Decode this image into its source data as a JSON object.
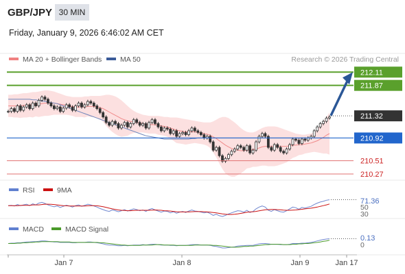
{
  "header": {
    "symbol": "GBP/JPY",
    "timeframe": "30 MIN",
    "datetime": "Friday, January 9, 2026 6:46:02 AM CET"
  },
  "chart_data": [
    {
      "type": "line",
      "panel": "price",
      "legend": [
        {
          "name": "MA 20 + Bollinger Bands",
          "color": "#f08080"
        },
        {
          "name": "MA 50",
          "color": "#3a5a98"
        }
      ],
      "attribution": "Research © 2026 Trading Central",
      "ylim": [
        210.22,
        212.2
      ],
      "levels": [
        {
          "value": 212.11,
          "label": "212.11",
          "kind": "resistance",
          "color": "#5aa02c"
        },
        {
          "value": 211.87,
          "label": "211.87",
          "kind": "resistance",
          "color": "#5aa02c"
        },
        {
          "value": 211.32,
          "label": "211.32",
          "kind": "last",
          "color": "#333333"
        },
        {
          "value": 210.92,
          "label": "210.92",
          "kind": "pivot",
          "color": "#2266cc"
        },
        {
          "value": 210.51,
          "label": "210.51",
          "kind": "support",
          "color": "#e07070"
        },
        {
          "value": 210.27,
          "label": "210.27",
          "kind": "support",
          "color": "#e07070"
        }
      ],
      "x_ticks": [
        "Jan 7",
        "Jan 8",
        "Jan 9",
        "Jan 17"
      ],
      "close": [
        211.4,
        211.45,
        211.4,
        211.5,
        211.42,
        211.48,
        211.52,
        211.45,
        211.55,
        211.5,
        211.6,
        211.66,
        211.62,
        211.55,
        211.5,
        211.45,
        211.48,
        211.4,
        211.46,
        211.52,
        211.48,
        211.42,
        211.5,
        211.55,
        211.48,
        211.52,
        211.58,
        211.55,
        211.5,
        211.45,
        211.38,
        211.3,
        211.2,
        211.15,
        211.22,
        211.18,
        211.1,
        211.15,
        211.2,
        211.12,
        211.18,
        211.25,
        211.2,
        211.15,
        211.18,
        211.1,
        211.2,
        211.25,
        211.18,
        211.12,
        211.05,
        211.1,
        211.08,
        211.0,
        211.05,
        210.95,
        211.0,
        211.02,
        210.98,
        211.05,
        211.1,
        211.05,
        211.02,
        210.98,
        210.92,
        210.95,
        210.85,
        210.7,
        210.75,
        210.6,
        210.5,
        210.55,
        210.62,
        210.68,
        210.72,
        210.78,
        210.75,
        210.7,
        210.78,
        210.65,
        210.7,
        210.85,
        210.95,
        211.0,
        210.95,
        210.75,
        210.7,
        210.8,
        210.75,
        210.68,
        210.65,
        210.72,
        210.8,
        210.9,
        210.88,
        210.82,
        210.9,
        210.88,
        210.92,
        210.95,
        211.05,
        211.12,
        211.18,
        211.22,
        211.28,
        211.3
      ],
      "ma20": [
        211.5,
        211.5,
        211.5,
        211.5,
        211.5,
        211.51,
        211.51,
        211.52,
        211.52,
        211.53,
        211.53,
        211.54,
        211.55,
        211.55,
        211.55,
        211.55,
        211.54,
        211.53,
        211.52,
        211.51,
        211.5,
        211.49,
        211.48,
        211.48,
        211.48,
        211.48,
        211.49,
        211.49,
        211.49,
        211.48,
        211.47,
        211.45,
        211.42,
        211.39,
        211.36,
        211.33,
        211.3,
        211.27,
        211.25,
        211.23,
        211.22,
        211.21,
        211.2,
        211.19,
        211.18,
        211.17,
        211.16,
        211.16,
        211.16,
        211.15,
        211.14,
        211.13,
        211.12,
        211.1,
        211.08,
        211.06,
        211.05,
        211.04,
        211.03,
        211.03,
        211.03,
        211.03,
        211.02,
        211.01,
        211.0,
        210.99,
        210.97,
        210.94,
        210.91,
        210.87,
        210.83,
        210.79,
        210.76,
        210.73,
        210.71,
        210.7,
        210.69,
        210.69,
        210.7,
        210.7,
        210.71,
        210.72,
        210.74,
        210.76,
        210.77,
        210.77,
        210.77,
        210.77,
        210.77,
        210.77,
        210.77,
        210.77,
        210.78,
        210.79,
        210.79,
        210.8,
        210.8,
        210.81,
        210.82,
        210.83,
        210.85,
        210.87,
        210.9,
        210.93,
        210.97,
        211.0
      ],
      "bb_upper": [
        211.7,
        211.7,
        211.71,
        211.71,
        211.72,
        211.73,
        211.73,
        211.74,
        211.75,
        211.75,
        211.76,
        211.77,
        211.78,
        211.78,
        211.77,
        211.76,
        211.74,
        211.72,
        211.7,
        211.68,
        211.67,
        211.66,
        211.66,
        211.66,
        211.66,
        211.67,
        211.67,
        211.68,
        211.68,
        211.68,
        211.68,
        211.69,
        211.7,
        211.7,
        211.69,
        211.67,
        211.64,
        211.6,
        211.55,
        211.5,
        211.45,
        211.41,
        211.38,
        211.36,
        211.34,
        211.33,
        211.32,
        211.32,
        211.32,
        211.32,
        211.31,
        211.3,
        211.3,
        211.29,
        211.29,
        211.29,
        211.28,
        211.27,
        211.26,
        211.25,
        211.24,
        211.23,
        211.22,
        211.21,
        211.2,
        211.2,
        211.2,
        211.22,
        211.25,
        211.28,
        211.3,
        211.3,
        211.28,
        211.24,
        211.2,
        211.15,
        211.1,
        211.06,
        211.03,
        211.02,
        211.02,
        211.04,
        211.07,
        211.1,
        211.12,
        211.13,
        211.13,
        211.13,
        211.12,
        211.1,
        211.08,
        211.06,
        211.04,
        211.02,
        211.0,
        210.99,
        210.98,
        210.98,
        210.99,
        211.0,
        211.03,
        211.08,
        211.15,
        211.22,
        211.3,
        211.38
      ],
      "bb_lower": [
        211.3,
        211.3,
        211.29,
        211.29,
        211.28,
        211.29,
        211.29,
        211.3,
        211.29,
        211.31,
        211.3,
        211.31,
        211.32,
        211.32,
        211.33,
        211.34,
        211.34,
        211.34,
        211.34,
        211.34,
        211.33,
        211.32,
        211.3,
        211.3,
        211.3,
        211.29,
        211.31,
        211.3,
        211.3,
        211.28,
        211.26,
        211.21,
        211.14,
        211.08,
        211.03,
        210.99,
        210.96,
        210.94,
        210.95,
        210.96,
        210.99,
        211.01,
        211.02,
        211.02,
        211.02,
        211.01,
        211.0,
        211.0,
        211.0,
        210.98,
        210.97,
        210.96,
        210.94,
        210.91,
        210.87,
        210.83,
        210.82,
        210.81,
        210.8,
        210.81,
        210.82,
        210.83,
        210.82,
        210.81,
        210.8,
        210.78,
        210.74,
        210.66,
        210.57,
        210.46,
        210.36,
        210.28,
        210.24,
        210.22,
        210.22,
        210.25,
        210.28,
        210.32,
        210.37,
        210.38,
        210.4,
        210.4,
        210.41,
        210.42,
        210.42,
        210.41,
        210.41,
        210.41,
        210.42,
        210.44,
        210.46,
        210.48,
        210.52,
        210.56,
        210.58,
        210.61,
        210.62,
        210.64,
        210.65,
        210.66,
        210.67,
        210.66,
        210.65,
        210.64,
        210.64,
        210.62
      ],
      "ma50": [
        211.62,
        211.62,
        211.62,
        211.62,
        211.62,
        211.62,
        211.62,
        211.62,
        211.61,
        211.61,
        211.6,
        211.59,
        211.58,
        211.57,
        211.56,
        211.55,
        211.54,
        211.52,
        211.5,
        211.48,
        211.46,
        211.44,
        211.42,
        211.4,
        211.38,
        211.36,
        211.34,
        211.32,
        211.3,
        211.28,
        211.26,
        211.24,
        211.22,
        211.2,
        211.18,
        211.16,
        211.14,
        211.12,
        211.1,
        211.08,
        211.06,
        211.04,
        211.02,
        211.0,
        210.98,
        210.96,
        210.95,
        210.94,
        210.93,
        210.92,
        210.91,
        210.9,
        210.9,
        210.9,
        210.9,
        210.9,
        210.9,
        210.9,
        210.9,
        210.9,
        210.91,
        210.91,
        210.92,
        210.92,
        210.92,
        210.92,
        210.92,
        210.92,
        210.92,
        210.92,
        210.92,
        210.92,
        210.92,
        210.92,
        210.92,
        210.92,
        210.92,
        210.92,
        210.92,
        210.92,
        210.92,
        210.92,
        210.92,
        210.92,
        210.92,
        210.92,
        210.92,
        210.92,
        210.92,
        210.92,
        210.92,
        210.92,
        210.92,
        210.92,
        210.92,
        210.92,
        210.92,
        210.92,
        210.92,
        210.92,
        210.92,
        210.92,
        210.92,
        210.92,
        210.92,
        210.92
      ]
    },
    {
      "type": "line",
      "panel": "rsi",
      "legend": [
        {
          "name": "RSI",
          "color": "#6080d0"
        },
        {
          "name": "9MA",
          "color": "#cc1111"
        }
      ],
      "ylim": [
        25,
        80
      ],
      "last_value_label": "71.36",
      "ticks": [
        "50",
        "30"
      ],
      "rsi": [
        55,
        56,
        54,
        58,
        55,
        57,
        59,
        55,
        60,
        57,
        62,
        64,
        61,
        57,
        54,
        52,
        54,
        50,
        53,
        56,
        54,
        51,
        55,
        57,
        53,
        56,
        59,
        57,
        54,
        51,
        47,
        44,
        41,
        39,
        43,
        41,
        38,
        41,
        44,
        40,
        43,
        46,
        44,
        41,
        43,
        39,
        44,
        47,
        43,
        40,
        37,
        40,
        39,
        35,
        38,
        34,
        37,
        39,
        36,
        40,
        43,
        40,
        39,
        37,
        35,
        37,
        33,
        28,
        31,
        27,
        25,
        28,
        32,
        35,
        38,
        41,
        40,
        37,
        42,
        36,
        39,
        46,
        51,
        54,
        51,
        42,
        39,
        44,
        41,
        38,
        37,
        41,
        46,
        51,
        49,
        45,
        50,
        48,
        51,
        53,
        58,
        62,
        65,
        67,
        70,
        71.36
      ],
      "ma9": [
        55,
        55,
        55,
        55,
        55.5,
        56,
        56,
        56,
        57,
        57,
        57,
        58,
        59,
        59,
        58.5,
        58,
        57,
        56,
        55,
        54.5,
        54,
        54,
        54,
        54,
        54,
        54,
        54.5,
        55,
        55,
        54.5,
        53.5,
        52,
        50,
        48,
        46,
        44.5,
        43,
        42,
        41.5,
        41,
        41,
        41.5,
        42,
        42,
        42,
        42,
        42,
        42.5,
        43,
        42.5,
        42,
        41,
        40.5,
        40,
        39,
        38,
        37.5,
        37.5,
        37.5,
        37.5,
        38,
        38.5,
        38.5,
        38.5,
        38,
        37.5,
        37,
        36,
        35,
        33.5,
        32,
        31,
        30.5,
        30.5,
        31,
        32,
        33.5,
        35,
        36.5,
        37.5,
        38,
        39,
        40.5,
        42,
        43.5,
        44,
        44.5,
        44.5,
        44,
        43.5,
        42.5,
        42,
        42,
        42.5,
        43,
        44,
        45,
        46,
        47,
        48,
        49.5,
        51,
        53,
        55,
        57,
        59.5
      ]
    },
    {
      "type": "line",
      "panel": "macd",
      "legend": [
        {
          "name": "MACD",
          "color": "#6080d0"
        },
        {
          "name": "MACD Signal",
          "color": "#4a9a2a"
        }
      ],
      "ylim": [
        -0.25,
        0.25
      ],
      "last_value_label": "0.13",
      "ticks": [
        "0"
      ],
      "macd": [
        0.0,
        0.01,
        0.01,
        0.02,
        0.02,
        0.03,
        0.04,
        0.04,
        0.05,
        0.05,
        0.06,
        0.07,
        0.07,
        0.06,
        0.05,
        0.04,
        0.04,
        0.03,
        0.03,
        0.03,
        0.03,
        0.02,
        0.02,
        0.03,
        0.03,
        0.03,
        0.04,
        0.04,
        0.03,
        0.02,
        0.01,
        -0.01,
        -0.03,
        -0.04,
        -0.04,
        -0.05,
        -0.06,
        -0.06,
        -0.05,
        -0.06,
        -0.05,
        -0.04,
        -0.04,
        -0.04,
        -0.03,
        -0.04,
        -0.03,
        -0.02,
        -0.02,
        -0.03,
        -0.04,
        -0.04,
        -0.04,
        -0.05,
        -0.05,
        -0.06,
        -0.05,
        -0.05,
        -0.05,
        -0.04,
        -0.03,
        -0.03,
        -0.03,
        -0.04,
        -0.04,
        -0.04,
        -0.05,
        -0.07,
        -0.08,
        -0.1,
        -0.12,
        -0.12,
        -0.11,
        -0.1,
        -0.09,
        -0.07,
        -0.06,
        -0.06,
        -0.05,
        -0.05,
        -0.05,
        -0.03,
        -0.01,
        0.0,
        0.0,
        -0.01,
        -0.02,
        -0.02,
        -0.02,
        -0.03,
        -0.03,
        -0.03,
        -0.02,
        0.0,
        0.0,
        0.0,
        0.01,
        0.01,
        0.02,
        0.03,
        0.05,
        0.07,
        0.09,
        0.11,
        0.12,
        0.13
      ],
      "signal": [
        0.0,
        0.0,
        0.0,
        0.01,
        0.01,
        0.02,
        0.02,
        0.03,
        0.03,
        0.04,
        0.04,
        0.05,
        0.05,
        0.05,
        0.05,
        0.05,
        0.05,
        0.04,
        0.04,
        0.04,
        0.04,
        0.03,
        0.03,
        0.03,
        0.03,
        0.03,
        0.03,
        0.03,
        0.03,
        0.03,
        0.02,
        0.02,
        0.01,
        0.0,
        -0.01,
        -0.02,
        -0.03,
        -0.04,
        -0.04,
        -0.05,
        -0.05,
        -0.05,
        -0.05,
        -0.05,
        -0.04,
        -0.04,
        -0.04,
        -0.04,
        -0.03,
        -0.03,
        -0.03,
        -0.04,
        -0.04,
        -0.04,
        -0.04,
        -0.05,
        -0.05,
        -0.05,
        -0.05,
        -0.05,
        -0.05,
        -0.04,
        -0.04,
        -0.04,
        -0.04,
        -0.04,
        -0.04,
        -0.05,
        -0.05,
        -0.06,
        -0.07,
        -0.08,
        -0.09,
        -0.1,
        -0.1,
        -0.1,
        -0.09,
        -0.08,
        -0.08,
        -0.07,
        -0.07,
        -0.06,
        -0.05,
        -0.04,
        -0.03,
        -0.03,
        -0.02,
        -0.02,
        -0.02,
        -0.02,
        -0.03,
        -0.03,
        -0.03,
        -0.02,
        -0.02,
        -0.01,
        -0.01,
        0.0,
        0.0,
        0.01,
        0.02,
        0.03,
        0.04,
        0.06,
        0.07,
        0.09
      ]
    }
  ]
}
